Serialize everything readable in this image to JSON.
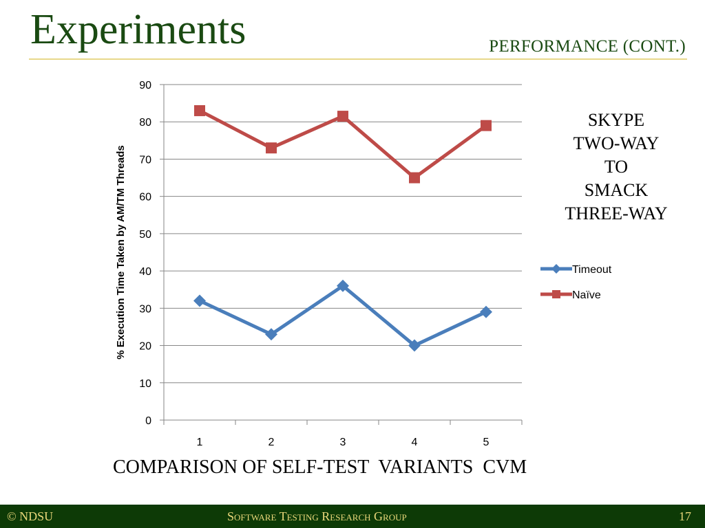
{
  "slide": {
    "title": "Experiments",
    "subtitle": "PERFORMANCE (CONT.)",
    "side_label": [
      "SKYPE",
      "TWO-WAY",
      "TO",
      "SMACK",
      "THREE-WAY"
    ],
    "caption": "COMPARISON OF SELF-TEST  VARIANTS  CVM",
    "footer_left": "© NDSU",
    "footer_center": "Software Testing Research Group",
    "footer_right": "17"
  },
  "colors": {
    "title": "#1a4a12",
    "footer_bg": "#0d3a06",
    "footer_text": "#e9d77a",
    "timeout": "#4a7ebb",
    "naive": "#be4b48",
    "grid": "#868686"
  },
  "chart_data": {
    "type": "line",
    "title": "",
    "xlabel": "",
    "ylabel": "%  Execution Time Taken by  AM/TM Threads",
    "categories": [
      "1",
      "2",
      "3",
      "4",
      "5"
    ],
    "ylim": [
      0,
      90
    ],
    "yticks": [
      0,
      10,
      20,
      30,
      40,
      50,
      60,
      70,
      80,
      90
    ],
    "grid": true,
    "legend": "right",
    "series": [
      {
        "name": "Timeout",
        "values": [
          32,
          23,
          36,
          20,
          29
        ],
        "marker": "diamond",
        "color": "#4a7ebb"
      },
      {
        "name": "Naïve",
        "values": [
          83,
          73,
          81.5,
          65,
          79
        ],
        "marker": "square",
        "color": "#be4b48"
      }
    ]
  }
}
